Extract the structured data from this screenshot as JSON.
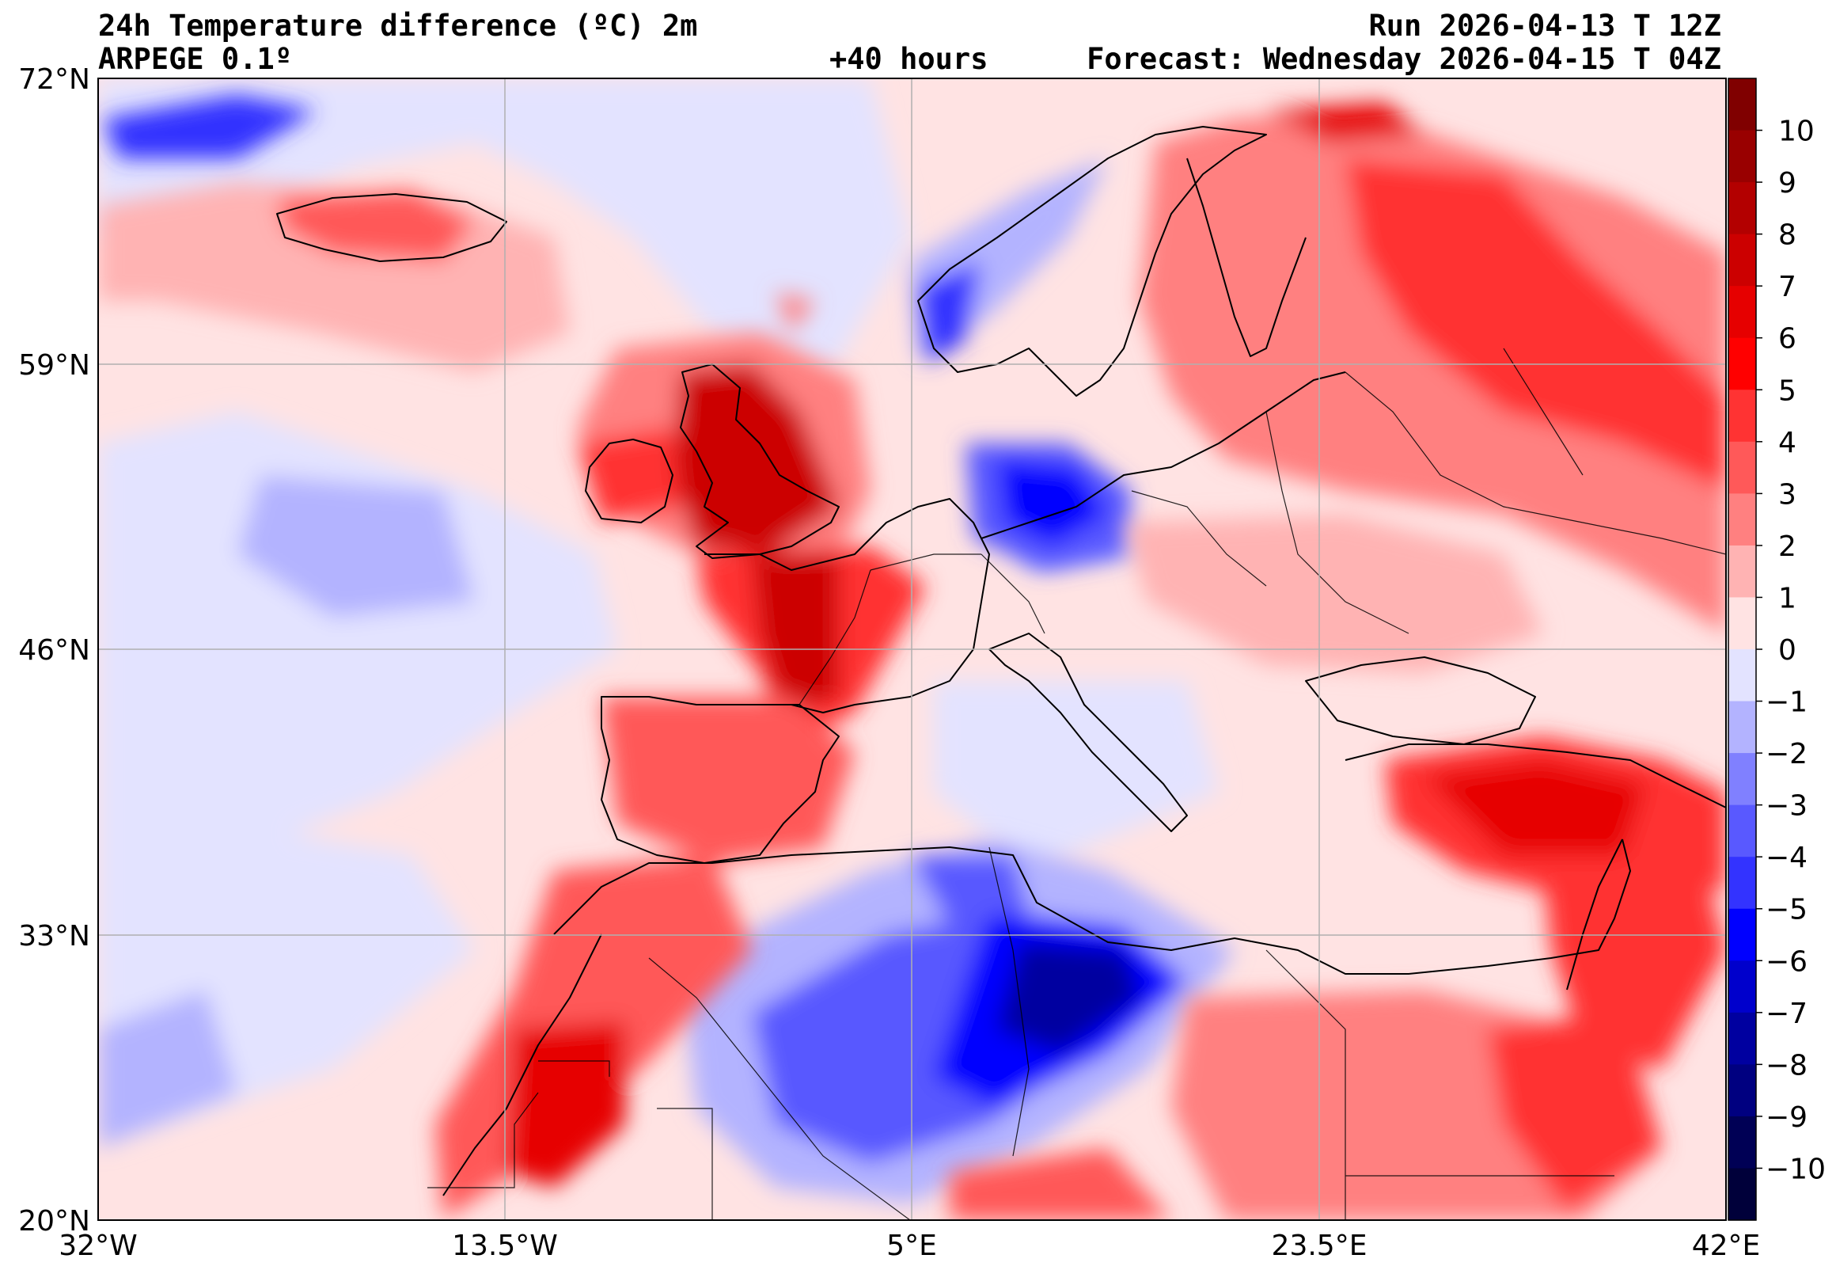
{
  "header": {
    "title": "24h Temperature difference (ºC) 2m",
    "model": "ARPEGE 0.1º",
    "lead": "+40 hours",
    "run": "Run 2026-04-13 T 12Z",
    "forecast": "Forecast: Wednesday 2026-04-15 T 04Z"
  },
  "axes": {
    "lat_ticks": [
      "72°N",
      "59°N",
      "46°N",
      "33°N",
      "20°N"
    ],
    "lon_ticks": [
      "32°W",
      "13.5°W",
      "5°E",
      "23.5°E",
      "42°E"
    ]
  },
  "colorbar": {
    "labels": [
      "10",
      "9",
      "8",
      "7",
      "6",
      "5",
      "4",
      "3",
      "2",
      "1",
      "0",
      "−1",
      "−2",
      "−3",
      "−4",
      "−5",
      "−6",
      "−7",
      "−8",
      "−9",
      "−10"
    ],
    "colors_top_to_bottom": [
      "#800000",
      "#990000",
      "#b30000",
      "#cc0000",
      "#e60000",
      "#ff0000",
      "#ff3333",
      "#ff5959",
      "#ff8080",
      "#ffb3b3",
      "#ffe3e3",
      "#e3e3ff",
      "#b3b3ff",
      "#8080ff",
      "#5959ff",
      "#3333ff",
      "#0000ff",
      "#0000cc",
      "#0000a0",
      "#000080",
      "#000055",
      "#00003a"
    ]
  },
  "colors": {
    "ocean_warm": "#ffe3e3",
    "ocean_cool": "#e3e3ff",
    "grid": "#b0b0b0",
    "coast": "#000000"
  }
}
